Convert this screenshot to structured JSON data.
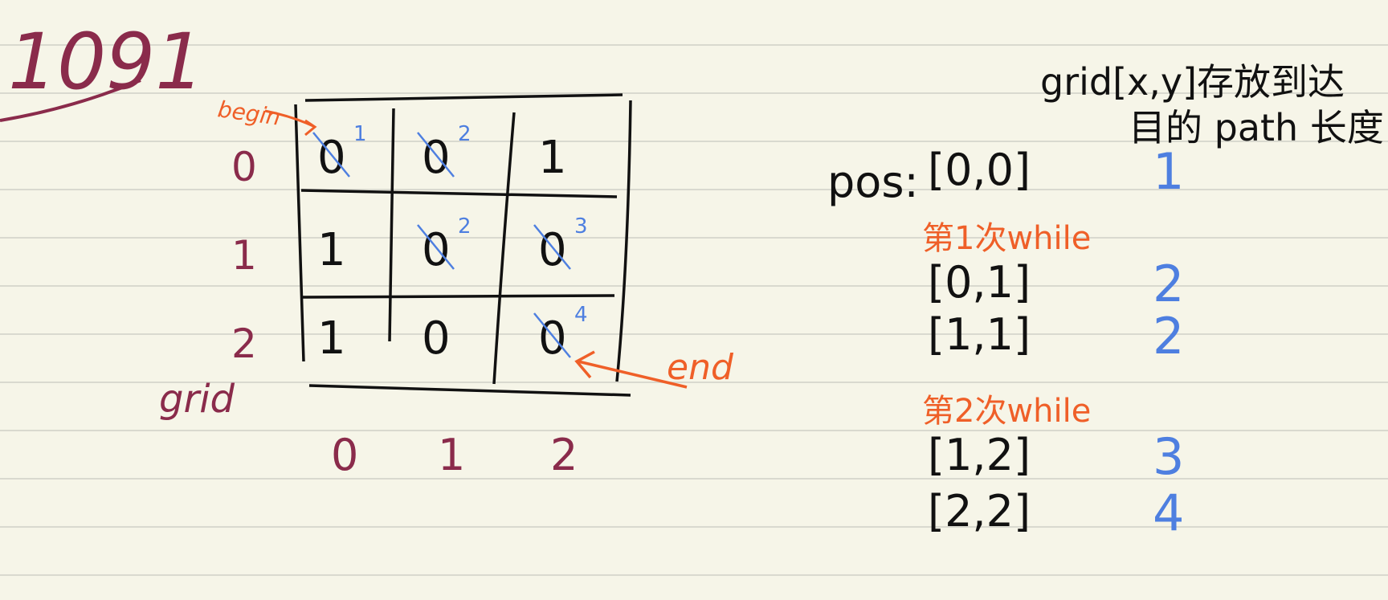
{
  "title": "1091",
  "colors": {
    "paper": "#f6f5e8",
    "rule": "#d9d9cf",
    "ink": "#111111",
    "maroon": "#8a2b4b",
    "orange": "#ef5f28",
    "blue": "#4e7fe0"
  },
  "grid": {
    "label": "grid",
    "row_labels": [
      "0",
      "1",
      "2"
    ],
    "col_labels": [
      "0",
      "1",
      "2"
    ],
    "cells": [
      [
        "0",
        "0",
        "1"
      ],
      [
        "1",
        "0",
        "0"
      ],
      [
        "1",
        "0",
        "0"
      ]
    ],
    "path_steps": [
      [
        "1",
        "2",
        ""
      ],
      [
        "",
        "2",
        "3"
      ],
      [
        "",
        "",
        "4"
      ]
    ],
    "begin_label": "begin",
    "end_label": "end"
  },
  "right": {
    "header_line1": "grid[x,y]存放到达",
    "header_line2": "目的 path 长度",
    "pos_label": "pos:",
    "rows": [
      {
        "label": "[0,0]",
        "value": "1"
      },
      {
        "label": "第1次while",
        "value": "",
        "is_caption": true
      },
      {
        "label": "[0,1]",
        "value": "2"
      },
      {
        "label": "[1,1]",
        "value": "2"
      },
      {
        "label": "第2次while",
        "value": "",
        "is_caption": true
      },
      {
        "label": "[1,2]",
        "value": "3"
      },
      {
        "label": "[2,2]",
        "value": "4"
      }
    ]
  }
}
